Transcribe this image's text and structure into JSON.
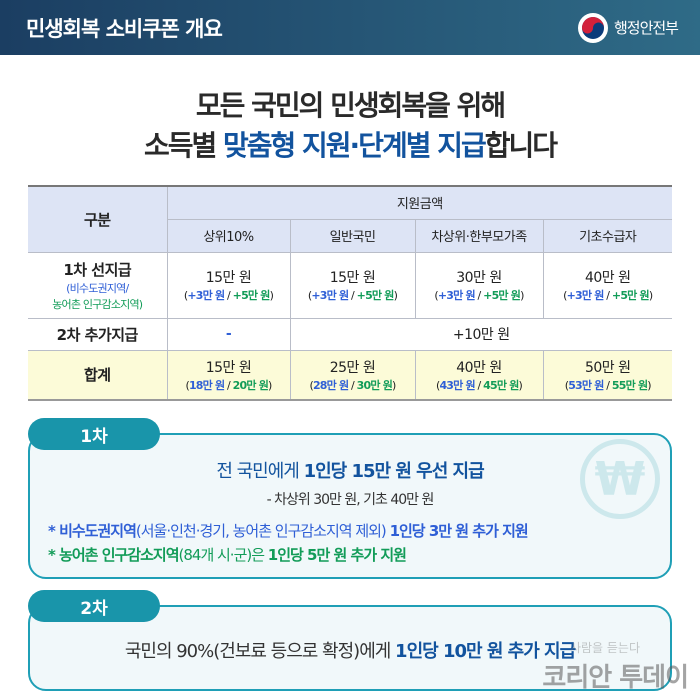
{
  "header": {
    "title": "민생회복 소비쿠폰 개요",
    "ministry": "행정안전부"
  },
  "headline": {
    "line1": "모든 국민의 민생회복을 위해",
    "line2_pre": "소득별 ",
    "line2_hl": "맞춤형 지원·단계별 지급",
    "line2_post": "합니다"
  },
  "table": {
    "col_category": "구분",
    "col_group": "지원금액",
    "columns": [
      "상위10%",
      "일반국민",
      "차상위·한부모가족",
      "기초수급자"
    ],
    "row1": {
      "label": "1차 선지급",
      "sub_blue": "(비수도권지역/",
      "sub_green": "농어촌 인구감소지역)",
      "cells": [
        {
          "amount": "15만 원",
          "blue": "+3만 원",
          "green": "+5만 원"
        },
        {
          "amount": "15만 원",
          "blue": "+3만 원",
          "green": "+5만 원"
        },
        {
          "amount": "30만 원",
          "blue": "+3만 원",
          "green": "+5만 원"
        },
        {
          "amount": "40만 원",
          "blue": "+3만 원",
          "green": "+5만 원"
        }
      ]
    },
    "row2": {
      "label": "2차 추가지급",
      "first": "-",
      "rest": "+10만 원"
    },
    "total": {
      "label": "합계",
      "cells": [
        {
          "amount": "15만 원",
          "blue": "18만 원",
          "green": "20만 원"
        },
        {
          "amount": "25만 원",
          "blue": "28만 원",
          "green": "30만 원"
        },
        {
          "amount": "40만 원",
          "blue": "43만 원",
          "green": "45만 원"
        },
        {
          "amount": "50만 원",
          "blue": "53만 원",
          "green": "55만 원"
        }
      ]
    }
  },
  "phase1": {
    "tag": "1차",
    "main_pre": "전 국민에게 ",
    "main_bold": "1인당 15만 원 우선 지급",
    "sub": "- 차상위 30만 원, 기초 40만 원",
    "note1_bold": "* 비수도권지역",
    "note1_mid": "(서울·인천·경기, 농어촌 인구감소지역 제외) ",
    "note1_end": "1인당 3만 원 추가 지원",
    "note2_bold": "* 농어촌 인구감소지역",
    "note2_mid": "(84개 시·군)은 ",
    "note2_end": "1인당 5만 원 추가 지원",
    "icon": "won-icon"
  },
  "phase2": {
    "tag": "2차",
    "main_pre": "국민의 90%(건보료 등으로 확정)에게 ",
    "main_bold": "1인당 10만 원 추가 지급"
  },
  "watermark": {
    "text": "코리안 투데이",
    "slogan": "사람을 듣는다"
  },
  "colors": {
    "header": "#1b3e62",
    "accent": "#12539e",
    "teal": "#1995aa",
    "blue": "#2f5fd6",
    "green": "#129c58"
  }
}
